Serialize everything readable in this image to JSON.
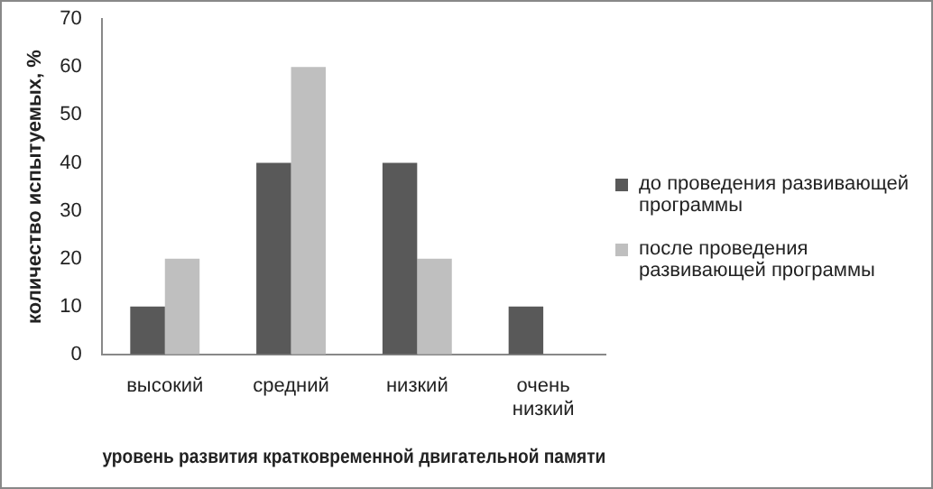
{
  "chart_data": {
    "type": "bar",
    "xlabel": "уровень развития кратковременной двигательной памяти",
    "ylabel": "количество испытуемых, %",
    "categories": [
      "высокий",
      "средний",
      "низкий",
      "очень низкий"
    ],
    "series": [
      {
        "name": "до проведения развивающей программы",
        "color": "#595959",
        "values": [
          10,
          40,
          40,
          10
        ]
      },
      {
        "name": "после проведения развивающей программы",
        "color": "#bfbfbf",
        "values": [
          20,
          60,
          20,
          0
        ]
      }
    ],
    "ylim": [
      0,
      70
    ],
    "yticks": [
      0,
      10,
      20,
      30,
      40,
      50,
      60,
      70
    ],
    "grid": false,
    "legend": "right"
  }
}
